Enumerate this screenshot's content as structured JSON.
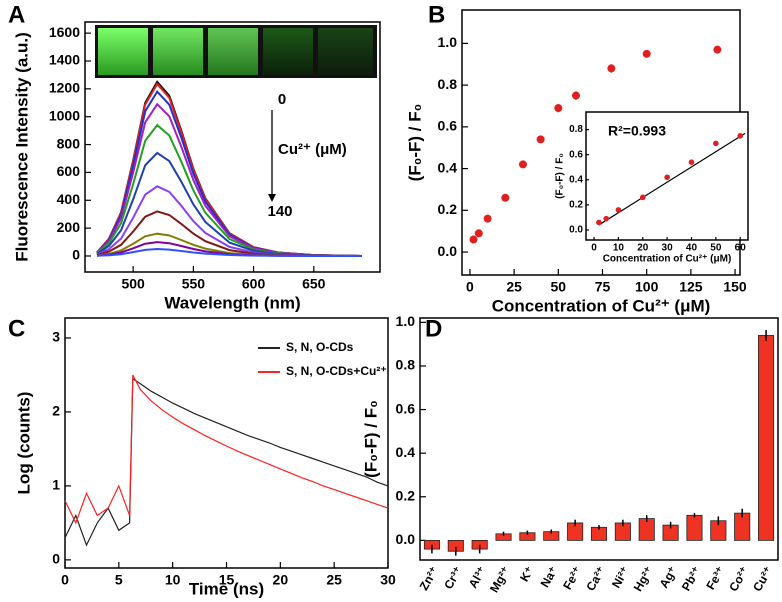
{
  "chart_data": [
    {
      "type": "line",
      "panel_label": "A",
      "xlabel": "Wavelength (nm)",
      "ylabel": "Fluorescence Intensity (a.u.)",
      "xlim": [
        460,
        705
      ],
      "ylim": [
        -115,
        1680
      ],
      "xticks": [
        500,
        550,
        600,
        650
      ],
      "yticks": [
        0,
        200,
        400,
        600,
        800,
        1000,
        1200,
        1400,
        1600
      ],
      "annotations": [
        "0",
        "Cu²⁺ (μM)",
        "140"
      ],
      "x": [
        470,
        480,
        490,
        500,
        510,
        520,
        530,
        540,
        550,
        560,
        580,
        600,
        620,
        650,
        690
      ],
      "series": [
        {
          "color": "#111111",
          "values": [
            25,
            125,
            313,
            688,
            1100,
            1250,
            1150,
            900,
            625,
            413,
            163,
            63,
            25,
            6,
            0
          ]
        },
        {
          "color": "#e02020",
          "values": [
            25,
            124,
            309,
            679,
            1087,
            1235,
            1136,
            889,
            618,
            408,
            161,
            62,
            25,
            6,
            0
          ]
        },
        {
          "color": "#2030d0",
          "values": [
            24,
            118,
            295,
            649,
            1038,
            1180,
            1086,
            850,
            590,
            389,
            153,
            59,
            24,
            6,
            0
          ]
        },
        {
          "color": "#a020c0",
          "values": [
            22,
            109,
            273,
            600,
            959,
            1090,
            1003,
            785,
            545,
            360,
            142,
            55,
            22,
            5,
            0
          ]
        },
        {
          "color": "#20a020",
          "values": [
            19,
            94,
            235,
            517,
            827,
            940,
            865,
            677,
            470,
            310,
            122,
            47,
            19,
            5,
            0
          ]
        },
        {
          "color": "#1f3fb0",
          "values": [
            15,
            74,
            185,
            407,
            651,
            740,
            681,
            533,
            370,
            244,
            96,
            37,
            15,
            4,
            0
          ]
        },
        {
          "color": "#8a3ff0",
          "values": [
            10,
            50,
            125,
            275,
            440,
            500,
            460,
            360,
            250,
            165,
            65,
            25,
            10,
            3,
            0
          ]
        },
        {
          "color": "#801818",
          "values": [
            6,
            32,
            80,
            176,
            282,
            320,
            294,
            230,
            160,
            106,
            42,
            16,
            6,
            2,
            0
          ]
        },
        {
          "color": "#808000",
          "values": [
            3,
            16,
            40,
            88,
            141,
            160,
            147,
            115,
            80,
            53,
            21,
            8,
            3,
            1,
            0
          ]
        },
        {
          "color": "#8000a0",
          "values": [
            2,
            10,
            25,
            55,
            88,
            100,
            92,
            72,
            50,
            33,
            13,
            5,
            2,
            1,
            0
          ]
        },
        {
          "color": "#3050ff",
          "values": [
            1,
            5,
            13,
            28,
            44,
            50,
            46,
            36,
            25,
            17,
            7,
            3,
            1,
            0,
            0
          ]
        }
      ]
    },
    {
      "type": "scatter",
      "panel_label": "B",
      "xlabel": "Concentration of Cu²⁺ (μM)",
      "ylabel": "(F₀-F) / F₀",
      "xlim": [
        -4.5,
        152.8
      ],
      "ylim": [
        -0.11,
        1.16
      ],
      "xticks": [
        0,
        25,
        50,
        75,
        100,
        125,
        150
      ],
      "yticks": [
        {
          "value": 0,
          "label": "0.0"
        },
        {
          "value": 0.2,
          "label": "0.2"
        },
        {
          "value": 0.4,
          "label": "0.4"
        },
        {
          "value": 0.6,
          "label": "0.6"
        },
        {
          "value": 0.8,
          "label": "0.8"
        },
        {
          "value": 1,
          "label": "1.0"
        }
      ],
      "color": "#e02020",
      "x": [
        2,
        5,
        10,
        20,
        30,
        40,
        50,
        60,
        80,
        100,
        140
      ],
      "values": [
        0.06,
        0.09,
        0.16,
        0.26,
        0.42,
        0.54,
        0.69,
        0.75,
        0.88,
        0.95,
        0.97
      ],
      "errors": [
        0.015,
        0.015,
        0.015,
        0.015,
        0.015,
        0.015,
        0.02,
        0.02,
        0.02,
        0.015,
        0.015
      ],
      "inset": {
        "annotation": "R²=0.993",
        "xlabel": "Concentration of Cu²⁺ (μM)",
        "ylabel": "(F₀-F) / F₀",
        "xlim": [
          -3.3,
          63.2
        ],
        "ylim": [
          -0.08,
          0.94
        ],
        "xticks": [
          0,
          10,
          20,
          30,
          40,
          50,
          60
        ],
        "yticks": [
          {
            "value": 0,
            "label": "0.0"
          },
          {
            "value": 0.2,
            "label": "0.2"
          },
          {
            "value": 0.4,
            "label": "0.4"
          },
          {
            "value": 0.6,
            "label": "0.6"
          },
          {
            "value": 0.8,
            "label": "0.8"
          }
        ],
        "color": "#e02020",
        "x": [
          2,
          5,
          10,
          20,
          30,
          40,
          50,
          60
        ],
        "values": [
          0.06,
          0.09,
          0.16,
          0.26,
          0.42,
          0.54,
          0.69,
          0.75
        ],
        "fit": {
          "color": "#000000",
          "x": [
            2,
            62
          ],
          "values": [
            0.04,
            0.77
          ]
        }
      }
    },
    {
      "type": "line",
      "panel_label": "C",
      "xlabel": "Time (ns)",
      "ylabel": "Log (counts)",
      "xlim": [
        0,
        30
      ],
      "ylim": [
        -0.11,
        3.27
      ],
      "xticks": [
        0,
        5,
        10,
        15,
        20,
        25,
        30
      ],
      "yticks": [
        0,
        1,
        2,
        3
      ],
      "legend": "upper right",
      "x": [
        0,
        1,
        2,
        3,
        4,
        5,
        6,
        6.3,
        7,
        8,
        9,
        10,
        11,
        12,
        13,
        14,
        15,
        16,
        17,
        18,
        19,
        20,
        21,
        22,
        23,
        24,
        25,
        26,
        27,
        28,
        29,
        30
      ],
      "series": [
        {
          "name": "S, N, O-CDs",
          "color": "#222222",
          "values": [
            0.3,
            0.6,
            0.2,
            0.5,
            0.7,
            0.4,
            0.5,
            2.45,
            2.38,
            2.28,
            2.2,
            2.12,
            2.05,
            1.98,
            1.92,
            1.86,
            1.8,
            1.74,
            1.68,
            1.63,
            1.58,
            1.52,
            1.47,
            1.42,
            1.37,
            1.32,
            1.27,
            1.22,
            1.17,
            1.12,
            1.05,
            1.0
          ]
        },
        {
          "name": "S, N, O-CDs+Cu²⁺",
          "color": "#ff2020",
          "values": [
            0.8,
            0.5,
            0.9,
            0.6,
            0.7,
            1.0,
            0.6,
            2.5,
            2.3,
            2.15,
            2.03,
            1.93,
            1.84,
            1.76,
            1.68,
            1.61,
            1.54,
            1.47,
            1.41,
            1.35,
            1.29,
            1.23,
            1.17,
            1.11,
            1.06,
            1.0,
            0.95,
            0.9,
            0.85,
            0.8,
            0.75,
            0.7
          ]
        }
      ]
    },
    {
      "type": "bar",
      "panel_label": "D",
      "ylabel": "(F₀-F) / F₀",
      "ylim": [
        -0.09,
        1.02
      ],
      "yticks": [
        {
          "value": 0,
          "label": "0.0"
        },
        {
          "value": 0.2,
          "label": "0.2"
        },
        {
          "value": 0.4,
          "label": "0.4"
        },
        {
          "value": 0.6,
          "label": "0.6"
        },
        {
          "value": 0.8,
          "label": "0.8"
        },
        {
          "value": 1,
          "label": "1.0"
        }
      ],
      "color": "#ee3322",
      "categories": [
        "Zn²⁺",
        "Cr³⁺",
        "Al³⁺",
        "Mg²⁺",
        "K⁺",
        "Na⁺",
        "Fe²⁺",
        "Ca²⁺",
        "Ni²⁺",
        "Hg²⁺",
        "Ag⁺",
        "Pb²⁺",
        "Fe³⁺",
        "Co²⁺",
        "Cu²⁺"
      ],
      "values": [
        -0.04,
        -0.05,
        -0.04,
        0.03,
        0.035,
        0.04,
        0.08,
        0.06,
        0.08,
        0.1,
        0.07,
        0.115,
        0.09,
        0.125,
        0.94
      ],
      "errors": [
        0.02,
        0.02,
        0.02,
        0.01,
        0.01,
        0.01,
        0.015,
        0.01,
        0.015,
        0.015,
        0.015,
        0.01,
        0.02,
        0.02,
        0.025
      ]
    }
  ]
}
